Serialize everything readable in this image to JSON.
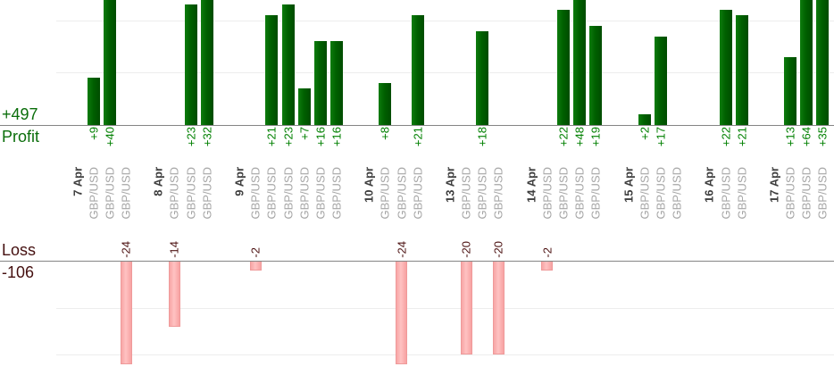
{
  "labels": {
    "profit_total": "+497",
    "profit_series": "Profit",
    "loss_series": "Loss",
    "loss_total": "-106"
  },
  "colors": {
    "profit_bar": "#006400",
    "loss_bar": "#ffb6b6",
    "profit_text": "#008000",
    "loss_text": "#4e1414",
    "totals_profit_text": "#0b6e0b",
    "totals_loss_text": "#451010",
    "pair_text": "#a6a6a6",
    "date_text": "#3f3f3f",
    "gridline": "#ededed",
    "axis_line": "#858585"
  },
  "chart_data": {
    "type": "bar",
    "layout": "dual-panel profit above axis, loss below second axis, rotated category labels",
    "pair_label": "GBP/USD",
    "profit_total": 497,
    "loss_total": -106,
    "profit_gridlines": [
      10,
      20
    ],
    "loss_gridlines": [
      -10,
      -20
    ],
    "profit_axis_clip": 24,
    "grid_on": true,
    "groups": [
      {
        "date": "7 Apr",
        "trades": [
          {
            "value": 9,
            "label": "+9"
          },
          {
            "value": 40,
            "label": "+40"
          },
          {
            "value": -24,
            "label": "-24"
          }
        ]
      },
      {
        "date": "8 Apr",
        "trades": [
          {
            "value": -14,
            "label": "-14"
          },
          {
            "value": 23,
            "label": "+23"
          },
          {
            "value": 32,
            "label": "+32"
          }
        ]
      },
      {
        "date": "9 Apr",
        "trades": [
          {
            "value": -2,
            "label": "-2"
          },
          {
            "value": 21,
            "label": "+21"
          },
          {
            "value": 23,
            "label": "+23"
          },
          {
            "value": 7,
            "label": "+7"
          },
          {
            "value": 16,
            "label": "+16"
          },
          {
            "value": 16,
            "label": "+16"
          }
        ]
      },
      {
        "date": "10 Apr",
        "trades": [
          {
            "value": 8,
            "label": "+8"
          },
          {
            "value": -24,
            "label": "-24"
          },
          {
            "value": 21,
            "label": "+21"
          }
        ]
      },
      {
        "date": "13 Apr",
        "trades": [
          {
            "value": -20,
            "label": "-20"
          },
          {
            "value": 18,
            "label": "+18"
          },
          {
            "value": -20,
            "label": "-20"
          }
        ]
      },
      {
        "date": "14 Apr",
        "trades": [
          {
            "value": -2,
            "label": "-2"
          },
          {
            "value": 22,
            "label": "+22"
          },
          {
            "value": 48,
            "label": "+48"
          },
          {
            "value": 19,
            "label": "+19"
          }
        ]
      },
      {
        "date": "15 Apr",
        "trades": [
          {
            "value": 2,
            "label": "+2"
          },
          {
            "value": 17,
            "label": "+17"
          },
          {
            "value": 0,
            "label": ""
          }
        ]
      },
      {
        "date": "16 Apr",
        "trades": [
          {
            "value": 22,
            "label": "+22"
          },
          {
            "value": 21,
            "label": "+21"
          }
        ]
      },
      {
        "date": "17 Apr",
        "trades": [
          {
            "value": 13,
            "label": "+13"
          },
          {
            "value": 64,
            "label": "+64"
          },
          {
            "value": 35,
            "label": "+35"
          }
        ]
      }
    ]
  }
}
